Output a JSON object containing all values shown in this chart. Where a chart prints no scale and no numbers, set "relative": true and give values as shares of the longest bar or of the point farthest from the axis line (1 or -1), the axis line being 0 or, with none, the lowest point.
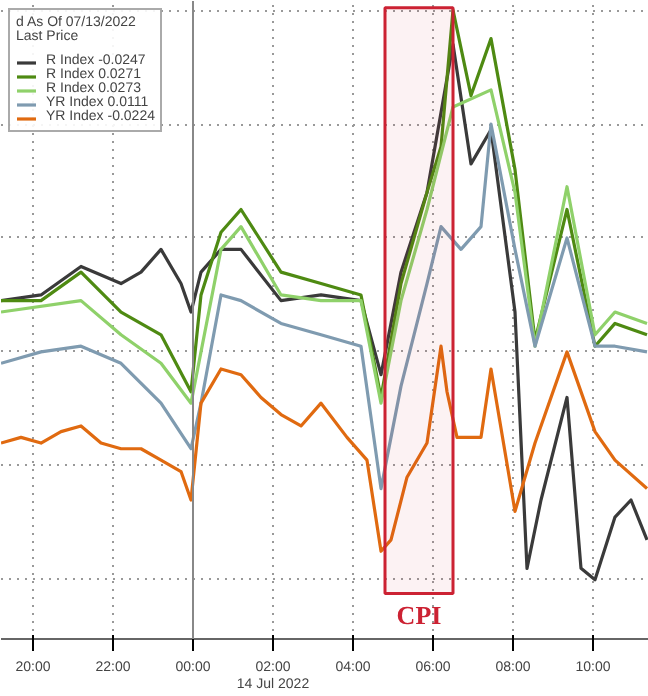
{
  "chart_data": {
    "type": "line",
    "relative": true,
    "legend_title": "d As Of 07/13/2022\nLast Price",
    "legend": "top left",
    "grid": true,
    "xlim": [
      "2022-07-13T19:12",
      "2022-07-14T11:24"
    ],
    "xticks": [
      {
        "value": "2022-07-13T20:00",
        "label": "20:00"
      },
      {
        "value": "2022-07-13T22:00",
        "label": "22:00"
      },
      {
        "value": "2022-07-14T00:00",
        "label": "00:00"
      },
      {
        "value": "2022-07-14T02:00",
        "label": "02:00\n14 Jul 2022"
      },
      {
        "value": "2022-07-14T04:00",
        "label": "04:00"
      },
      {
        "value": "2022-07-14T06:00",
        "label": "06:00"
      },
      {
        "value": "2022-07-14T08:00",
        "label": "08:00"
      },
      {
        "value": "2022-07-14T10:00",
        "label": "10:00"
      }
    ],
    "ref_lines": [
      {
        "axis": "x",
        "value": "2022-07-14T00:00",
        "color": "#888888",
        "line_style": "solid"
      }
    ],
    "bands": [
      {
        "axis": "x",
        "from": "2022-07-14T04:48",
        "to": "2022-07-14T06:30",
        "label": "CPI",
        "color": "#cc2233"
      }
    ],
    "series": [
      {
        "name": "R Index -0.0247",
        "color": "#3a3a3a",
        "x": [
          "2022-07-13T19:12",
          "2022-07-13T20:12",
          "2022-07-13T21:12",
          "2022-07-13T22:12",
          "2022-07-13T22:42",
          "2022-07-13T23:12",
          "2022-07-13T23:42",
          "2022-07-13T23:57",
          "2022-07-14T00:12",
          "2022-07-14T00:42",
          "2022-07-14T01:12",
          "2022-07-14T02:12",
          "2022-07-14T03:12",
          "2022-07-14T04:12",
          "2022-07-14T04:42",
          "2022-07-14T05:12",
          "2022-07-14T05:51",
          "2022-07-14T06:30",
          "2022-07-14T06:57",
          "2022-07-14T07:27",
          "2022-07-14T08:03",
          "2022-07-14T08:21",
          "2022-07-14T08:42",
          "2022-07-14T09:21",
          "2022-07-14T09:42",
          "2022-07-14T10:03",
          "2022-07-14T10:33",
          "2022-07-14T10:57",
          "2022-07-14T11:21"
        ],
        "values": [
          0.49,
          0.5,
          0.55,
          0.52,
          0.54,
          0.58,
          0.52,
          0.47,
          0.54,
          0.58,
          0.58,
          0.49,
          0.5,
          0.49,
          0.36,
          0.54,
          0.68,
          0.94,
          0.73,
          0.79,
          0.47,
          0.02,
          0.14,
          0.32,
          0.02,
          0,
          0.11,
          0.14,
          0.07
        ]
      },
      {
        "name": "R Index 0.0271",
        "color": "#4e8a12",
        "x": [
          "2022-07-13T19:12",
          "2022-07-13T20:12",
          "2022-07-13T21:12",
          "2022-07-13T22:12",
          "2022-07-13T23:12",
          "2022-07-13T23:57",
          "2022-07-14T00:12",
          "2022-07-14T00:42",
          "2022-07-14T01:12",
          "2022-07-14T02:12",
          "2022-07-14T03:12",
          "2022-07-14T04:12",
          "2022-07-14T04:42",
          "2022-07-14T05:12",
          "2022-07-14T05:51",
          "2022-07-14T06:12",
          "2022-07-14T06:30",
          "2022-07-14T06:57",
          "2022-07-14T07:27",
          "2022-07-14T08:03",
          "2022-07-14T08:33",
          "2022-07-14T09:21",
          "2022-07-14T10:03",
          "2022-07-14T10:33",
          "2022-07-14T11:21"
        ],
        "values": [
          0.49,
          0.49,
          0.54,
          0.47,
          0.43,
          0.33,
          0.5,
          0.61,
          0.65,
          0.54,
          0.52,
          0.5,
          0.32,
          0.52,
          0.68,
          0.76,
          1,
          0.85,
          0.95,
          0.72,
          0.42,
          0.65,
          0.41,
          0.45,
          0.43
        ]
      },
      {
        "name": "R Index 0.0273",
        "color": "#8fd16a",
        "x": [
          "2022-07-13T19:12",
          "2022-07-13T21:12",
          "2022-07-13T22:12",
          "2022-07-13T23:12",
          "2022-07-13T23:57",
          "2022-07-14T00:42",
          "2022-07-14T01:12",
          "2022-07-14T02:12",
          "2022-07-14T03:12",
          "2022-07-14T04:12",
          "2022-07-14T04:42",
          "2022-07-14T05:12",
          "2022-07-14T05:51",
          "2022-07-14T06:30",
          "2022-07-14T07:27",
          "2022-07-14T08:03",
          "2022-07-14T08:33",
          "2022-07-14T09:21",
          "2022-07-14T10:03",
          "2022-07-14T10:33",
          "2022-07-14T11:21"
        ],
        "values": [
          0.47,
          0.49,
          0.43,
          0.38,
          0.31,
          0.58,
          0.62,
          0.5,
          0.49,
          0.49,
          0.31,
          0.49,
          0.65,
          0.83,
          0.86,
          0.68,
          0.41,
          0.69,
          0.43,
          0.47,
          0.45
        ]
      },
      {
        "name": "YR Index 0.0111",
        "color": "#7f9bb0",
        "x": [
          "2022-07-13T19:12",
          "2022-07-13T20:12",
          "2022-07-13T21:12",
          "2022-07-13T22:12",
          "2022-07-13T23:12",
          "2022-07-13T23:57",
          "2022-07-14T00:12",
          "2022-07-14T00:42",
          "2022-07-14T01:12",
          "2022-07-14T02:12",
          "2022-07-14T03:12",
          "2022-07-14T04:12",
          "2022-07-14T04:42",
          "2022-07-14T05:12",
          "2022-07-14T05:51",
          "2022-07-14T06:12",
          "2022-07-14T06:42",
          "2022-07-14T07:12",
          "2022-07-14T07:27",
          "2022-07-14T08:03",
          "2022-07-14T08:33",
          "2022-07-14T09:21",
          "2022-07-14T10:03",
          "2022-07-14T10:33",
          "2022-07-14T11:21"
        ],
        "values": [
          0.38,
          0.4,
          0.41,
          0.38,
          0.31,
          0.23,
          0.31,
          0.5,
          0.49,
          0.45,
          0.43,
          0.41,
          0.16,
          0.34,
          0.52,
          0.62,
          0.58,
          0.62,
          0.8,
          0.58,
          0.41,
          0.6,
          0.41,
          0.41,
          0.4
        ]
      },
      {
        "name": "YR Index -0.0224",
        "color": "#e06a10",
        "x": [
          "2022-07-13T19:12",
          "2022-07-13T19:42",
          "2022-07-13T20:12",
          "2022-07-13T20:42",
          "2022-07-13T21:12",
          "2022-07-13T21:42",
          "2022-07-13T22:12",
          "2022-07-13T22:42",
          "2022-07-13T23:12",
          "2022-07-13T23:42",
          "2022-07-13T23:57",
          "2022-07-14T00:12",
          "2022-07-14T00:42",
          "2022-07-14T01:12",
          "2022-07-14T01:42",
          "2022-07-14T02:12",
          "2022-07-14T02:42",
          "2022-07-14T03:12",
          "2022-07-14T03:51",
          "2022-07-14T04:21",
          "2022-07-14T04:42",
          "2022-07-14T04:57",
          "2022-07-14T05:21",
          "2022-07-14T05:51",
          "2022-07-14T06:12",
          "2022-07-14T06:21",
          "2022-07-14T06:36",
          "2022-07-14T07:12",
          "2022-07-14T07:27",
          "2022-07-14T08:03",
          "2022-07-14T08:33",
          "2022-07-14T09:21",
          "2022-07-14T10:03",
          "2022-07-14T10:33",
          "2022-07-14T11:21"
        ],
        "values": [
          0.24,
          0.25,
          0.24,
          0.26,
          0.27,
          0.24,
          0.23,
          0.23,
          0.21,
          0.19,
          0.14,
          0.31,
          0.37,
          0.36,
          0.32,
          0.29,
          0.27,
          0.31,
          0.25,
          0.21,
          0.05,
          0.07,
          0.18,
          0.24,
          0.41,
          0.33,
          0.25,
          0.25,
          0.37,
          0.12,
          0.24,
          0.4,
          0.26,
          0.21,
          0.16
        ]
      }
    ]
  }
}
